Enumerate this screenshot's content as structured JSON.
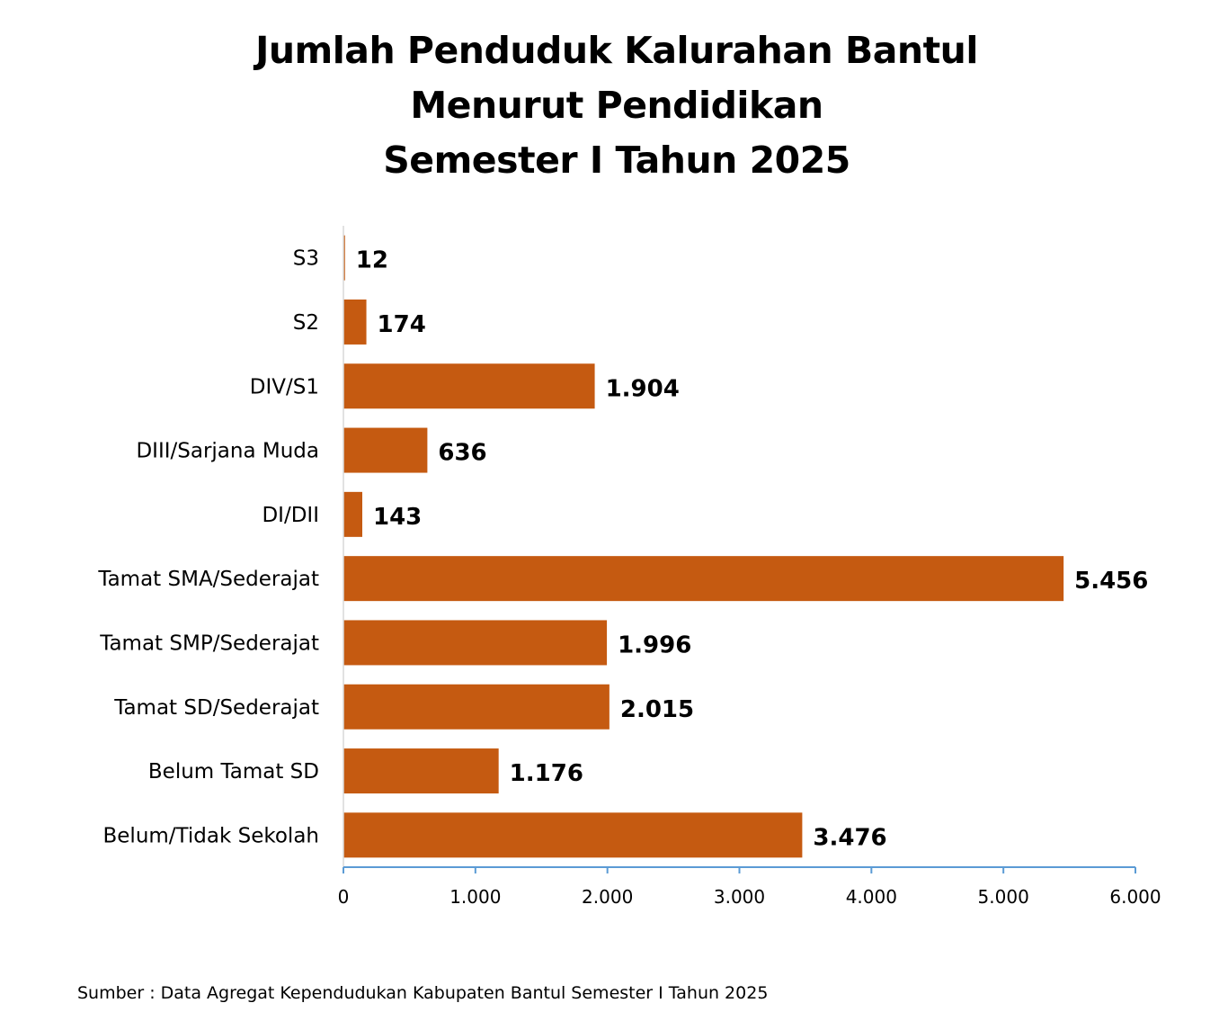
{
  "chart_data": {
    "type": "bar",
    "orientation": "horizontal",
    "title": [
      "Jumlah Penduduk Kalurahan Bantul",
      "Menurut Pendidikan",
      "Semester I Tahun 2025"
    ],
    "categories": [
      "S3",
      "S2",
      "DIV/S1",
      "DIII/Sarjana Muda",
      "DI/DII",
      "Tamat SMA/Sederajat",
      "Tamat SMP/Sederajat",
      "Tamat SD/Sederajat",
      "Belum Tamat SD",
      "Belum/Tidak Sekolah"
    ],
    "values": [
      12,
      174,
      1904,
      636,
      143,
      5456,
      1996,
      2015,
      1176,
      3476
    ],
    "value_labels": [
      "12",
      "174",
      "1.904",
      "636",
      "143",
      "5.456",
      "1.996",
      "2.015",
      "1.176",
      "3.476"
    ],
    "xlim": [
      0,
      6000
    ],
    "x_ticks": [
      0,
      1000,
      2000,
      3000,
      4000,
      5000,
      6000
    ],
    "x_tick_labels": [
      "0",
      "1.000",
      "2.000",
      "3.000",
      "4.000",
      "5.000",
      "6.000"
    ],
    "xlabel": "",
    "ylabel": "",
    "grid": false,
    "legend": "none",
    "colors": {
      "bar": "#C55A11",
      "axis": "#5B9BD5",
      "category_axis": "#D9D9D9"
    }
  },
  "source": "Sumber : Data Agregat Kependudukan Kabupaten Bantul Semester I Tahun 2025"
}
